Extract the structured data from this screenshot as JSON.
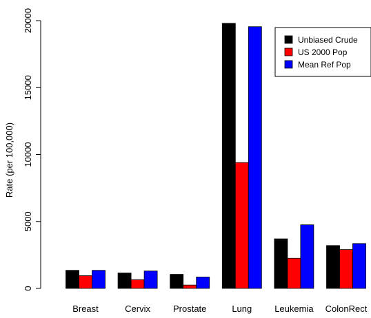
{
  "chart_data": {
    "type": "bar",
    "title": "",
    "xlabel": "",
    "ylabel": "Rate (per 100,000)",
    "ylim": [
      0,
      20000
    ],
    "yticks": [
      0,
      5000,
      10000,
      15000,
      20000
    ],
    "ytick_labels": [
      "0",
      "5000",
      "10000",
      "15000",
      "20000"
    ],
    "grid": false,
    "legend_position": "top-right",
    "categories": [
      "Breast",
      "Cervix",
      "Prostate",
      "Lung",
      "Leukemia",
      "ColonRect"
    ],
    "series": [
      {
        "name": "Unbiased Crude",
        "color": "#000000",
        "values": [
          1350,
          1150,
          1050,
          19800,
          3700,
          3200
        ]
      },
      {
        "name": "US 2000 Pop",
        "color": "#ff0000",
        "values": [
          950,
          650,
          250,
          9400,
          2250,
          2900
        ]
      },
      {
        "name": "Mean Ref Pop",
        "color": "#0000ff",
        "values": [
          1350,
          1300,
          850,
          19550,
          4750,
          3350
        ]
      }
    ]
  }
}
